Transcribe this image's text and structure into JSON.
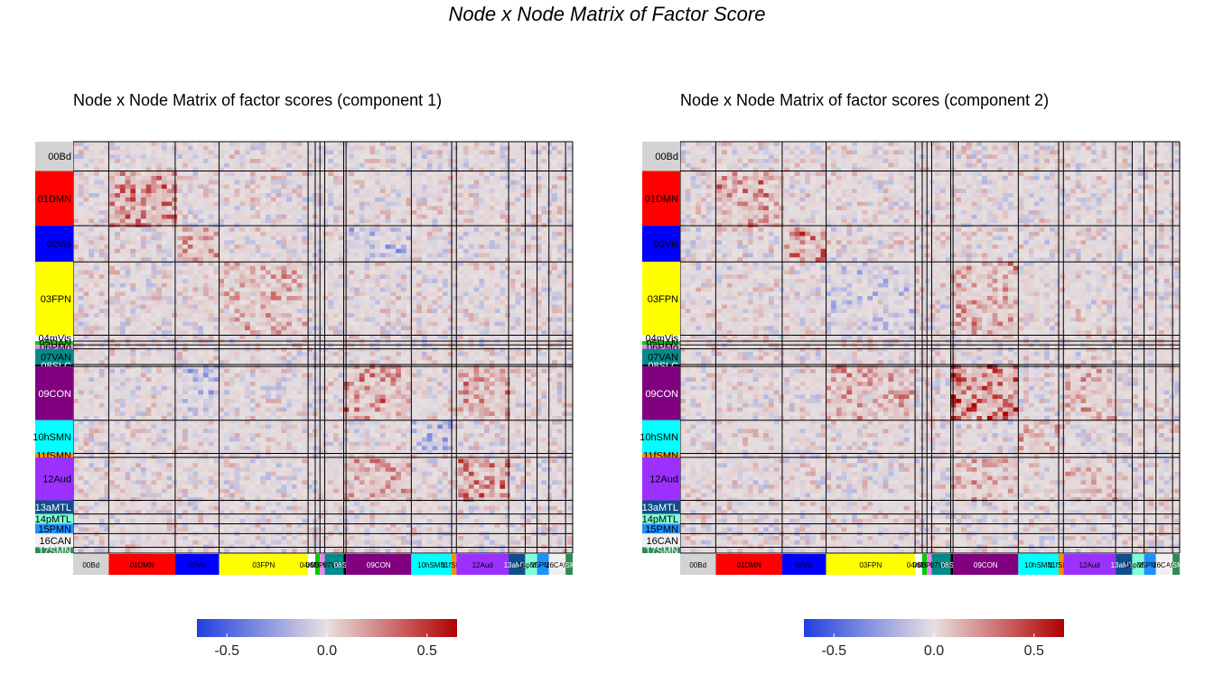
{
  "title": "Node x Node Matrix of Factor Score",
  "chart_data": [
    {
      "type": "heatmap",
      "title": "Node x Node Matrix of factor scores (component 1)",
      "networks": [
        {
          "name": "00Bd",
          "color": "#d3d3d3",
          "label_color": "#000000"
        },
        {
          "name": "01DMN",
          "color": "#ff0000",
          "label_color": "#000000"
        },
        {
          "name": "02Vis",
          "color": "#0000ff",
          "label_color": "#000000"
        },
        {
          "name": "03FPN",
          "color": "#ffff00",
          "label_color": "#000000"
        },
        {
          "name": "04mVis",
          "color": "#ffffff",
          "label_color": "#000000"
        },
        {
          "name": "05DAN",
          "color": "#00cc00",
          "label_color": "#000000"
        },
        {
          "name": "06PMo",
          "color": "#ee82ee",
          "label_color": "#000000"
        },
        {
          "name": "07VAN",
          "color": "#008b8b",
          "label_color": "#000000"
        },
        {
          "name": "08SLC",
          "color": "#000000",
          "label_color": "#ffffff"
        },
        {
          "name": "09CON",
          "color": "#800080",
          "label_color": "#ffffff"
        },
        {
          "name": "10hSMN",
          "color": "#00ffff",
          "label_color": "#000000"
        },
        {
          "name": "11fSMN",
          "color": "#ff8c00",
          "label_color": "#000000"
        },
        {
          "name": "12Aud",
          "color": "#9b30ff",
          "label_color": "#000000"
        },
        {
          "name": "13aMTL",
          "color": "#104e8b",
          "label_color": "#ffffff"
        },
        {
          "name": "14pMTL",
          "color": "#7fffd4",
          "label_color": "#000000"
        },
        {
          "name": "15PMN",
          "color": "#1e90ff",
          "label_color": "#000000"
        },
        {
          "name": "16CAN",
          "color": "#f0f0f0",
          "label_color": "#000000"
        },
        {
          "name": "17SMN",
          "color": "#2e8b57",
          "label_color": "#ffffff"
        }
      ],
      "column_labels": [
        "00Bd",
        "01DMN",
        "02Vis",
        "03FPN",
        "04mVis",
        "05DAN",
        "06PMo",
        "07VAN",
        "08SLC",
        "09CON",
        "10hSMN",
        "11fSMN",
        "12Aud",
        "13aMTL",
        "14pMTL",
        "15PMN",
        "16CAN",
        "17SMN"
      ],
      "block_means": {
        "01DMN-01DMN": 0.3,
        "02Vis-02Vis": 0.2,
        "03FPN-03FPN": 0.15,
        "09CON-09CON": 0.25,
        "12Aud-12Aud": 0.3,
        "09CON-12Aud": 0.2,
        "02Vis-09CON": -0.15,
        "10hSMN-10hSMN": -0.2
      },
      "colorbar": {
        "ticks": [
          -0.5,
          0.0,
          0.5
        ],
        "range": [
          -0.65,
          0.65
        ],
        "colors": [
          "#2040e0",
          "#e8e0e0",
          "#b00000"
        ]
      },
      "tick_labels": [
        "-0.5",
        "0.0",
        "0.5"
      ]
    },
    {
      "type": "heatmap",
      "title": "Node x Node Matrix of factor scores (component 2)",
      "networks": [
        {
          "name": "00Bd",
          "color": "#d3d3d3",
          "label_color": "#000000"
        },
        {
          "name": "01DMN",
          "color": "#ff0000",
          "label_color": "#000000"
        },
        {
          "name": "02Vis",
          "color": "#0000ff",
          "label_color": "#000000"
        },
        {
          "name": "03FPN",
          "color": "#ffff00",
          "label_color": "#000000"
        },
        {
          "name": "04mVis",
          "color": "#ffffff",
          "label_color": "#000000"
        },
        {
          "name": "05DAN",
          "color": "#00cc00",
          "label_color": "#000000"
        },
        {
          "name": "06PMo",
          "color": "#ee82ee",
          "label_color": "#000000"
        },
        {
          "name": "07VAN",
          "color": "#008b8b",
          "label_color": "#000000"
        },
        {
          "name": "08SLC",
          "color": "#000000",
          "label_color": "#ffffff"
        },
        {
          "name": "09CON",
          "color": "#800080",
          "label_color": "#ffffff"
        },
        {
          "name": "10hSMN",
          "color": "#00ffff",
          "label_color": "#000000"
        },
        {
          "name": "11fSMN",
          "color": "#ff8c00",
          "label_color": "#000000"
        },
        {
          "name": "12Aud",
          "color": "#9b30ff",
          "label_color": "#000000"
        },
        {
          "name": "13aMTL",
          "color": "#104e8b",
          "label_color": "#ffffff"
        },
        {
          "name": "14pMTL",
          "color": "#7fffd4",
          "label_color": "#000000"
        },
        {
          "name": "15PMN",
          "color": "#1e90ff",
          "label_color": "#000000"
        },
        {
          "name": "16CAN",
          "color": "#f0f0f0",
          "label_color": "#000000"
        },
        {
          "name": "17SMN",
          "color": "#2e8b57",
          "label_color": "#ffffff"
        }
      ],
      "column_labels": [
        "00Bd",
        "01DMN",
        "02Vis",
        "03FPN",
        "04mVis",
        "05DAN",
        "06PMo",
        "07VAN",
        "08SLC",
        "09CON",
        "10hSMN",
        "11fSMN",
        "12Aud",
        "13aMTL",
        "14pMTL",
        "15PMN",
        "16CAN",
        "17SMN"
      ],
      "block_means": {
        "01DMN-01DMN": 0.25,
        "02Vis-02Vis": 0.3,
        "03FPN-03FPN": -0.1,
        "09CON-09CON": 0.45,
        "10hSMN-10hSMN": 0.15,
        "09CON-12Aud": 0.15,
        "03FPN-09CON": 0.2,
        "12Aud-12Aud": 0.1
      },
      "colorbar": {
        "ticks": [
          -0.5,
          0.0,
          0.5
        ],
        "range": [
          -0.65,
          0.65
        ],
        "colors": [
          "#2040e0",
          "#e8e0e0",
          "#b00000"
        ]
      },
      "tick_labels": [
        "-0.5",
        "0.0",
        "0.5"
      ]
    }
  ]
}
